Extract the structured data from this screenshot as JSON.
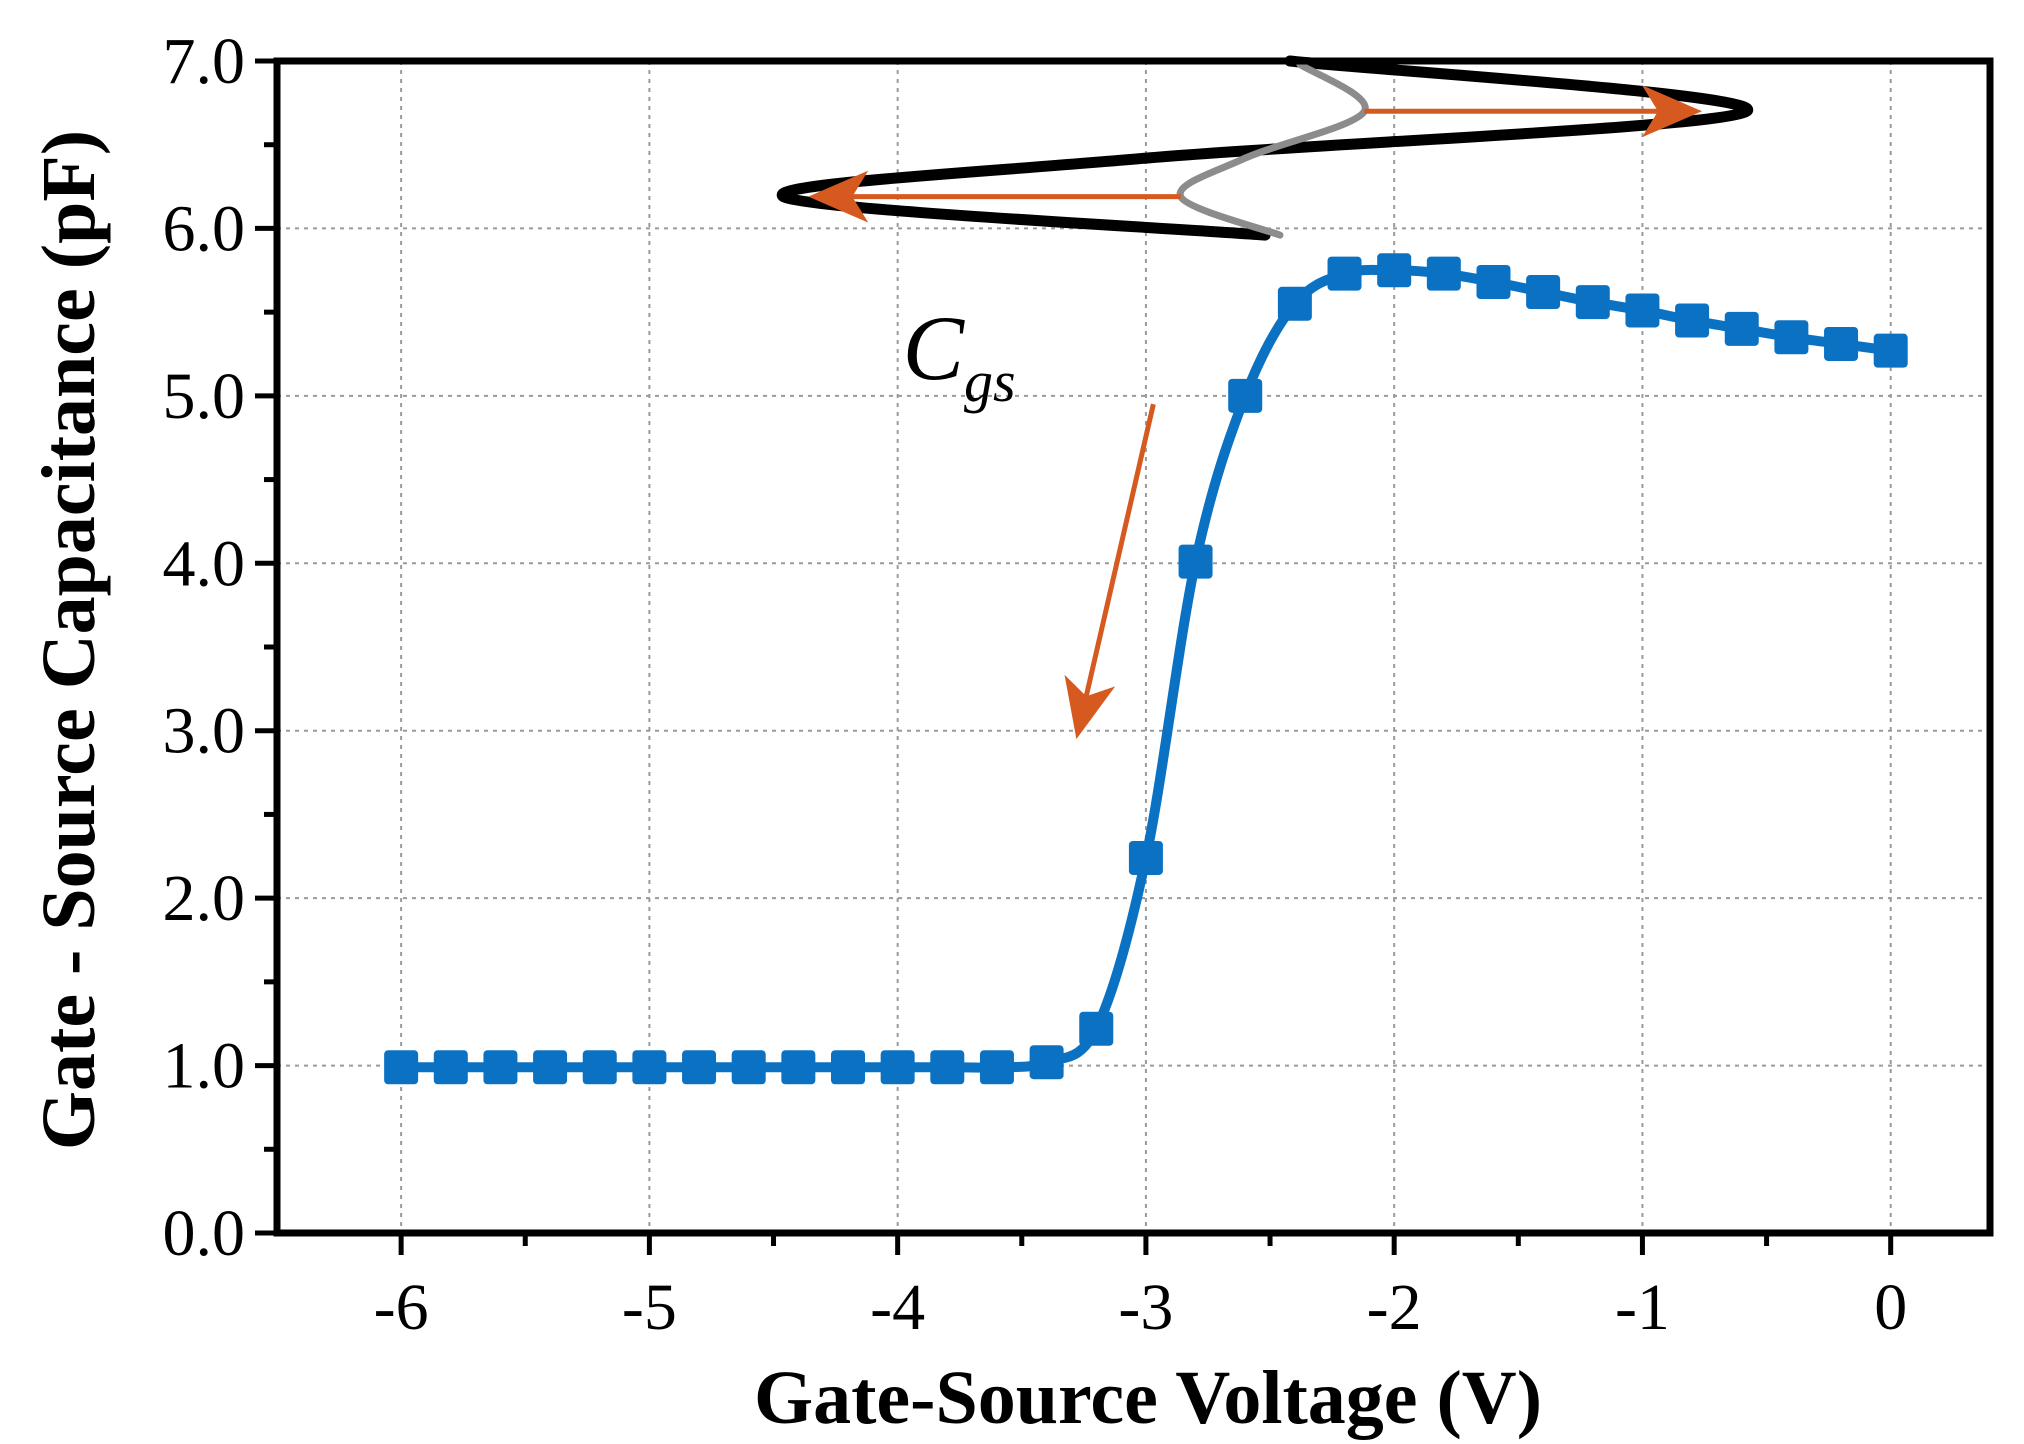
{
  "chart_data": {
    "type": "line",
    "title": "",
    "xlabel": "Gate-Source Voltage (V)",
    "ylabel": "Gate - Source Capacitance (pF)",
    "xlim": [
      -6.5,
      0.4
    ],
    "ylim": [
      0.0,
      7.0
    ],
    "x_ticks": [
      -6,
      -5,
      -4,
      -3,
      -2,
      -1,
      0
    ],
    "x_tick_labels": [
      "-6",
      "-5",
      "-4",
      "-3",
      "-2",
      "-1",
      "0"
    ],
    "y_ticks": [
      0,
      1,
      2,
      3,
      4,
      5,
      6,
      7
    ],
    "y_tick_labels": [
      "0.0",
      "1.0",
      "2.0",
      "3.0",
      "4.0",
      "5.0",
      "6.0",
      "7.0"
    ],
    "grid": true,
    "series": [
      {
        "name": "Cgs",
        "color": "#0B72C3",
        "marker": "square",
        "x": [
          -6.0,
          -5.8,
          -5.6,
          -5.4,
          -5.2,
          -5.0,
          -4.8,
          -4.6,
          -4.4,
          -4.2,
          -4.0,
          -3.8,
          -3.6,
          -3.4,
          -3.2,
          -3.0,
          -2.8,
          -2.6,
          -2.4,
          -2.2,
          -2.0,
          -1.8,
          -1.6,
          -1.4,
          -1.2,
          -1.0,
          -0.8,
          -0.6,
          -0.4,
          -0.2,
          0.0
        ],
        "y": [
          0.99,
          0.99,
          0.99,
          0.99,
          0.99,
          0.99,
          0.99,
          0.99,
          0.99,
          0.99,
          0.99,
          0.99,
          0.99,
          1.02,
          1.22,
          2.24,
          4.01,
          5.0,
          5.55,
          5.73,
          5.75,
          5.73,
          5.68,
          5.62,
          5.56,
          5.51,
          5.45,
          5.4,
          5.35,
          5.31,
          5.27
        ]
      }
    ],
    "annotations": {
      "label_main": "C",
      "label_sub": "gs",
      "label_pos": [
        -3.98,
        5.1
      ],
      "arrow_from": [
        -2.97,
        4.95
      ],
      "arrow_to": [
        -3.28,
        2.95
      ],
      "arrow_color": "#D65A1F",
      "hysteresis": {
        "outer_color": "#000000",
        "inner_color": "#8C8C8C",
        "outer_path": [
          [
            -2.42,
            7.0
          ],
          [
            -0.58,
            6.7
          ],
          [
            -3.0,
            6.42
          ],
          [
            -4.46,
            6.19
          ],
          [
            -2.52,
            5.96
          ]
        ],
        "inner_path": [
          [
            -2.38,
            6.98
          ],
          [
            -2.12,
            6.7
          ],
          [
            -2.6,
            6.42
          ],
          [
            -2.86,
            6.19
          ],
          [
            -2.46,
            5.96
          ]
        ],
        "top_arrow": {
          "from": [
            -2.12,
            6.7
          ],
          "to": [
            -0.76,
            6.7
          ]
        },
        "bottom_arrow": {
          "from": [
            -2.86,
            6.19
          ],
          "to": [
            -4.36,
            6.19
          ]
        }
      }
    }
  }
}
